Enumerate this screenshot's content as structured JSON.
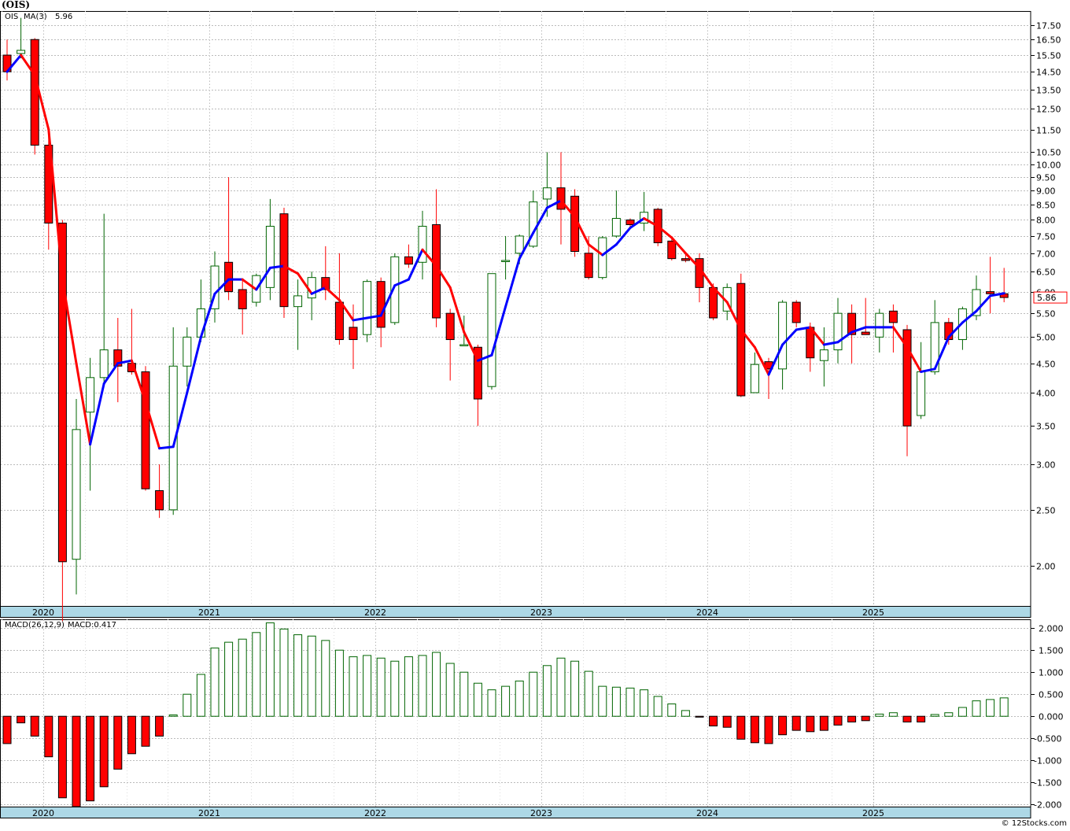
{
  "title": "(OIS)",
  "watermark": "© 12Stocks.com",
  "colors": {
    "up": "#006400",
    "down": "#ff0000",
    "ma_up": "#0000ff",
    "ma_down": "#ff0000",
    "grid": "#bbbbbb",
    "axis_band": "#add8e6"
  },
  "chart_data": [
    {
      "type": "candlestick",
      "symbol": "OIS",
      "legend": {
        "symbol_label": "OIS",
        "ma_label": "MA(3)",
        "ma_value": "5.96"
      },
      "last_price_label": "5.86",
      "scale": "log",
      "ylim": [
        1.7,
        18.5
      ],
      "y_ticks": [
        "17.50",
        "16.50",
        "15.50",
        "14.50",
        "13.50",
        "12.50",
        "11.50",
        "10.50",
        "10.00",
        "9.50",
        "9.00",
        "8.50",
        "8.00",
        "7.50",
        "7.00",
        "6.50",
        "6.00",
        "5.50",
        "5.00",
        "4.50",
        "4.00",
        "3.50",
        "3.00",
        "2.50",
        "2.00"
      ],
      "x_labels": [
        "2020",
        "2021",
        "2022",
        "2023",
        "2024",
        "2025"
      ],
      "ohlc": [
        [
          15.5,
          16.5,
          14.0,
          14.5
        ],
        [
          15.6,
          18.0,
          15.3,
          15.8
        ],
        [
          16.5,
          16.6,
          10.4,
          10.8
        ],
        [
          10.8,
          11.5,
          7.1,
          7.9
        ],
        [
          7.9,
          8.0,
          1.6,
          2.03
        ],
        [
          2.05,
          3.9,
          1.78,
          3.45
        ],
        [
          3.7,
          4.6,
          2.7,
          4.25
        ],
        [
          4.25,
          8.2,
          4.1,
          4.75
        ],
        [
          4.75,
          5.4,
          3.85,
          4.45
        ],
        [
          4.5,
          5.6,
          4.3,
          4.35
        ],
        [
          4.35,
          4.45,
          2.7,
          2.72
        ],
        [
          2.7,
          3.0,
          2.42,
          2.5
        ],
        [
          2.5,
          5.2,
          2.45,
          4.45
        ],
        [
          4.45,
          5.2,
          4.1,
          5.0
        ],
        [
          5.0,
          6.3,
          4.9,
          5.6
        ],
        [
          5.6,
          7.05,
          5.3,
          6.65
        ],
        [
          6.75,
          9.5,
          5.8,
          6.0
        ],
        [
          6.05,
          6.3,
          5.05,
          5.6
        ],
        [
          5.75,
          6.45,
          5.65,
          6.4
        ],
        [
          6.1,
          8.7,
          5.8,
          7.8
        ],
        [
          8.2,
          8.4,
          5.4,
          5.65
        ],
        [
          5.65,
          6.3,
          4.75,
          5.9
        ],
        [
          5.85,
          6.5,
          5.35,
          6.35
        ],
        [
          6.35,
          7.2,
          5.8,
          6.05
        ],
        [
          5.75,
          7.0,
          4.85,
          4.95
        ],
        [
          5.2,
          5.7,
          4.4,
          4.95
        ],
        [
          5.05,
          6.3,
          4.9,
          6.25
        ],
        [
          6.25,
          6.35,
          4.8,
          5.2
        ],
        [
          5.3,
          7.0,
          5.25,
          6.9
        ],
        [
          6.9,
          7.25,
          6.6,
          6.7
        ],
        [
          6.75,
          8.3,
          6.3,
          7.8
        ],
        [
          7.85,
          9.05,
          5.2,
          5.4
        ],
        [
          5.5,
          5.6,
          4.2,
          4.95
        ],
        [
          4.85,
          5.45,
          4.85,
          4.85
        ],
        [
          4.8,
          4.85,
          3.5,
          3.9
        ],
        [
          4.1,
          6.45,
          4.05,
          6.45
        ],
        [
          6.8,
          7.5,
          6.3,
          6.8
        ],
        [
          7.0,
          7.55,
          6.7,
          7.5
        ],
        [
          7.2,
          9.0,
          7.15,
          8.6
        ],
        [
          8.7,
          10.5,
          8.1,
          9.1
        ],
        [
          9.1,
          10.5,
          7.25,
          8.35
        ],
        [
          8.8,
          9.05,
          6.9,
          7.05
        ],
        [
          7.0,
          7.5,
          6.3,
          6.35
        ],
        [
          6.35,
          7.5,
          6.3,
          7.45
        ],
        [
          7.5,
          9.0,
          7.45,
          8.05
        ],
        [
          8.0,
          8.05,
          7.75,
          7.85
        ],
        [
          7.9,
          8.95,
          7.65,
          8.25
        ],
        [
          8.35,
          8.4,
          7.2,
          7.3
        ],
        [
          7.35,
          7.45,
          6.8,
          6.85
        ],
        [
          6.85,
          7.0,
          6.75,
          6.8
        ],
        [
          6.85,
          7.0,
          5.75,
          6.1
        ],
        [
          6.1,
          6.2,
          5.35,
          5.4
        ],
        [
          5.55,
          6.2,
          5.35,
          6.1
        ],
        [
          6.2,
          6.45,
          3.93,
          3.95
        ],
        [
          4.0,
          4.7,
          4.0,
          4.48
        ],
        [
          4.53,
          4.6,
          3.9,
          4.4
        ],
        [
          4.4,
          5.8,
          4.05,
          5.75
        ],
        [
          5.75,
          5.8,
          5.2,
          5.3
        ],
        [
          5.2,
          5.3,
          4.35,
          4.6
        ],
        [
          4.55,
          5.2,
          4.1,
          4.75
        ],
        [
          4.75,
          5.85,
          4.5,
          5.5
        ],
        [
          5.5,
          5.7,
          4.5,
          5.05
        ],
        [
          5.1,
          5.85,
          5.05,
          5.05
        ],
        [
          5.0,
          5.6,
          4.7,
          5.5
        ],
        [
          5.55,
          5.7,
          4.7,
          5.3
        ],
        [
          5.15,
          5.25,
          3.1,
          3.5
        ],
        [
          3.65,
          4.9,
          3.6,
          4.35
        ],
        [
          4.35,
          5.8,
          4.3,
          5.3
        ],
        [
          5.3,
          5.4,
          4.85,
          4.95
        ],
        [
          4.95,
          5.65,
          4.75,
          5.6
        ],
        [
          5.45,
          6.4,
          5.35,
          6.05
        ],
        [
          6.0,
          6.9,
          5.5,
          5.95
        ],
        [
          5.95,
          6.6,
          5.75,
          5.86
        ]
      ],
      "ma3": [
        14.5,
        15.5,
        14.3,
        11.5,
        6.3,
        4.5,
        3.25,
        4.15,
        4.5,
        4.55,
        3.85,
        3.2,
        3.22,
        4.0,
        5.0,
        5.95,
        6.3,
        6.3,
        6.05,
        6.6,
        6.65,
        6.45,
        5.95,
        6.1,
        5.8,
        5.35,
        5.4,
        5.45,
        6.15,
        6.3,
        7.1,
        6.65,
        6.1,
        5.1,
        4.55,
        4.65,
        5.65,
        6.85,
        7.6,
        8.4,
        8.65,
        8.1,
        7.25,
        6.95,
        7.25,
        7.75,
        8.05,
        7.8,
        7.45,
        7.0,
        6.6,
        6.1,
        5.75,
        5.15,
        4.8,
        4.3,
        4.85,
        5.15,
        5.2,
        4.85,
        4.9,
        5.1,
        5.2,
        5.2,
        5.2,
        4.8,
        4.35,
        4.4,
        5.0,
        5.3,
        5.55,
        5.9,
        5.96
      ]
    },
    {
      "type": "bar",
      "indicator": "MACD",
      "legend": {
        "params_label": "MACD(26,12,9)",
        "value_label": "MACD:0.417"
      },
      "ylim": [
        -2.05,
        2.2
      ],
      "y_ticks": [
        "2.000",
        "1.500",
        "1.000",
        "0.500",
        "0.000",
        "-0.500",
        "-1.000",
        "-1.500",
        "-2.000"
      ],
      "x_labels": [
        "2020",
        "2021",
        "2022",
        "2023",
        "2024",
        "2025"
      ],
      "values": [
        -0.62,
        -0.15,
        -0.45,
        -0.92,
        -1.85,
        -2.05,
        -1.92,
        -1.6,
        -1.2,
        -0.85,
        -0.68,
        -0.45,
        0.03,
        0.5,
        0.95,
        1.55,
        1.68,
        1.75,
        1.9,
        2.12,
        1.98,
        1.85,
        1.82,
        1.72,
        1.5,
        1.35,
        1.38,
        1.32,
        1.25,
        1.35,
        1.38,
        1.45,
        1.2,
        1.0,
        0.75,
        0.6,
        0.68,
        0.8,
        1.0,
        1.15,
        1.32,
        1.25,
        1.02,
        0.68,
        0.66,
        0.64,
        0.6,
        0.45,
        0.28,
        0.13,
        -0.02,
        -0.22,
        -0.25,
        -0.52,
        -0.6,
        -0.62,
        -0.42,
        -0.32,
        -0.35,
        -0.32,
        -0.2,
        -0.13,
        -0.1,
        0.05,
        0.08,
        -0.13,
        -0.13,
        0.04,
        0.08,
        0.2,
        0.35,
        0.38,
        0.417
      ]
    }
  ]
}
